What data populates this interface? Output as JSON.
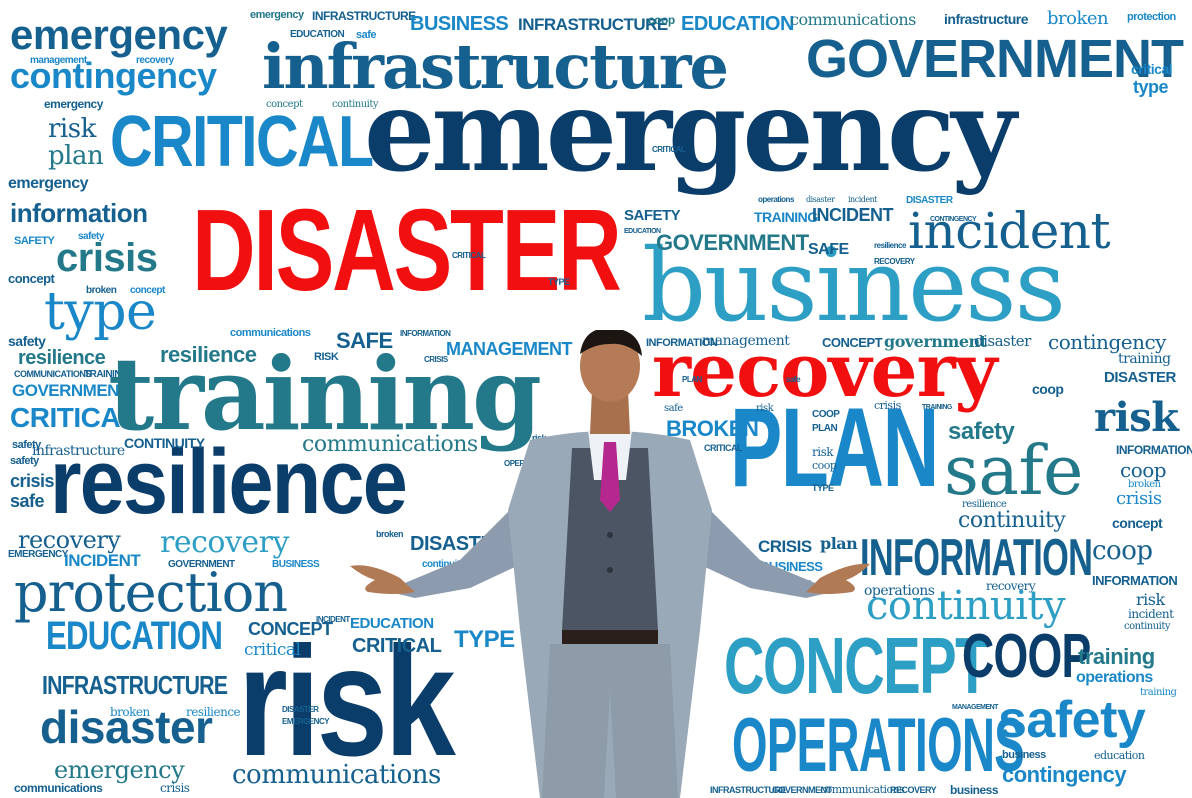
{
  "colors": {
    "navy": "#0b3d6b",
    "dark_blue": "#15608f",
    "medium_blue": "#1a88c8",
    "light_blue": "#2d9ec4",
    "teal": "#23798a",
    "sky": "#3bb0da",
    "red": "#f10f0f",
    "background": "#ffffff"
  },
  "subject": "man-in-grey-suit-arms-raised",
  "words": {
    "emergency_top": "emergency",
    "infrastructure_big": "infrastructure",
    "government_big": "GOVERNMENT",
    "critical_big": "CRITICAL",
    "emergency_big": "emergency",
    "disaster_big": "DISASTER",
    "business_big": "business",
    "incident_big": "incident",
    "training_big": "training",
    "recovery_big": "recovery",
    "resilience_big": "resilience",
    "plan_big": "PLAN",
    "safe_big": "safe",
    "protection_big": "protection",
    "risk_big": "risk",
    "concept_big": "CONCEPT",
    "coop_big": "COOP",
    "operations_big": "OPERATIONS",
    "safety_big": "safety",
    "information_big": "INFORMATION",
    "continuity_big": "continuity",
    "contingency_top": "contingency",
    "risk_small": "risk",
    "plan_small": "plan",
    "emergency_small": "emergency",
    "information_left": "information",
    "crisis_left": "crisis",
    "type_left": "type",
    "resilience_left": "resilience",
    "government_left": "GOVERNMENT",
    "critical_left": "CRITICAL",
    "crisis_small": "crisis",
    "safe_small": "safe",
    "recovery_left": "recovery",
    "incident_left": "INCIDENT",
    "education_big": "EDUCATION",
    "infrastructure_left": "INFRASTRUCTURE",
    "disaster_left": "disaster",
    "emergency_bottom": "emergency",
    "communications_bottom": "communications",
    "communications_mid": "communications",
    "recovery_mid": "recovery",
    "management": "MANAGEMENT",
    "safe_mid": "SAFE",
    "resilience_mid": "resilience",
    "continuity_mid": "CONTINUITY",
    "disaster_mid": "DISASTER",
    "concept_mid": "CONCEPT",
    "critical_mid": "CRITICAL",
    "critical_mid2": "critical",
    "education_mid": "EDUCATION",
    "type_mid": "TYPE",
    "government_mid": "GOVERNMENT",
    "safety_mid": "SAFETY",
    "training_mid": "TRAINING",
    "incident_mid": "INCIDENT",
    "safe_mid2": "SAFE",
    "business_right": "BUSINESS",
    "broken_right": "BROKEN",
    "recovery_right": "recovery",
    "protection_right": "protection",
    "contingency_right": "contingency",
    "type_right": "type",
    "critical_right": "critical",
    "disaster_right": "DISASTER",
    "coop_right": "coop",
    "risk_right": "risk",
    "safety_right": "safety",
    "information_right": "INFORMATION",
    "crisis_right": "crisis",
    "concept_right": "concept",
    "coop_right2": "coop",
    "information_right2": "INFORMATION",
    "risk_right2": "risk",
    "incident_right": "incident",
    "training_right": "training",
    "operations_right": "operations",
    "contingency_bottom": "contingency",
    "business_bottom": "business",
    "education_bottom": "education",
    "management_right": "management",
    "concept_r": "CONCEPT",
    "government_r": "government",
    "disaster_r": "disaster",
    "broken_mid": "BROKEN",
    "risk_mid": "risk",
    "coop_mid": "coop",
    "crisis_mid": "CRISIS",
    "plan_mid": "plan",
    "business_mid": "BUSINESS",
    "operations_mid": "operations",
    "recovery_mid2": "recovery",
    "infrastructure_top_small": "INFRASTRUCTURE",
    "business_top_small": "BUSINESS",
    "infrastructure_top2": "INFRASTRUCTURE",
    "education_top": "EDUCATION",
    "communications_top": "communications",
    "infrastructure_top3": "infrastructure",
    "broken_top": "broken",
    "protection_top": "protection",
    "coop_top": "coop",
    "emergency_tiny": "emergency",
    "safe_tiny": "safe",
    "education_tiny": "EDUCATION",
    "management_tiny": "management",
    "recovery_tiny": "recovery",
    "emergency_tiny2": "emergency",
    "concept_tiny": "concept",
    "continuity_tiny": "continuity",
    "safety_tiny": "SAFETY",
    "safety_tiny2": "safety",
    "concept_tiny2": "concept",
    "broken_tiny": "broken",
    "concept_tiny3": "concept",
    "safety_left": "safety",
    "communications_tiny": "COMMUNICATIONS",
    "training_tiny": "TRAINING",
    "safety_tiny3": "safety",
    "infrastructure_tiny": "infrastructure",
    "emergency_left2": "EMERGENCY",
    "broken_tiny2": "broken",
    "resilience_tiny": "resilience",
    "infrastructure_bottom": "INFRASTRUCTURE",
    "government_bottom": "GOVERNMENT",
    "communications_bottom2": "communications",
    "recovery_bottom": "RECOVERY",
    "business_bottom2": "business",
    "crisis_bottom": "crisis",
    "communications_bottom3": "communications",
    "government_small": "GOVERNMENT",
    "business_small": "BUSINESS",
    "concept_small": "CONCEPT",
    "critical_small": "critical",
    "critical_tiny": "CRITICAL",
    "type_small": "TYPE",
    "information_tiny": "INFORMATION",
    "crisis_tiny": "CRISIS",
    "risk_tiny": "RISK",
    "critical_tiny2": "CRITICAL",
    "operations_tiny": "OPERATIONS",
    "plan_tiny": "PLAN",
    "type_tiny": "TYPE",
    "coop_tiny": "COOP",
    "safe_tiny2": "safe",
    "risk_tiny2": "risk",
    "training_tiny2": "TRAINING",
    "crisis_tiny2": "crisis",
    "concept_tiny4": "CONCEPT",
    "incident_tiny": "INCIDENT",
    "operations_tiny2": "operations",
    "disaster_tiny": "disaster",
    "incident_tiny2": "incident",
    "government_tiny": "GOVERNMENT",
    "contingency_tiny": "CONTINGENCY",
    "recovery_tiny2": "RECOVERY",
    "operations_tiny3": "OPERATIONS",
    "disaster_tiny2": "DISASTER",
    "emergency_tiny3": "EMERGENCY",
    "incident_tiny3": "INCIDENT",
    "continuity_tiny2": "continuity",
    "management_tiny2": "MANAGEMENT",
    "recovery_tiny3": "recovery",
    "crisis_tiny3": "crisis",
    "resilience_tiny2": "resilience",
    "broken_tiny3": "broken",
    "disaster_tiny3": "DISASTER",
    "emergency_tiny4": "EMERGENCY",
    "protection_tiny": "protection",
    "business_tiny": "BUSINESS",
    "continuity_tiny3": "continuity"
  }
}
